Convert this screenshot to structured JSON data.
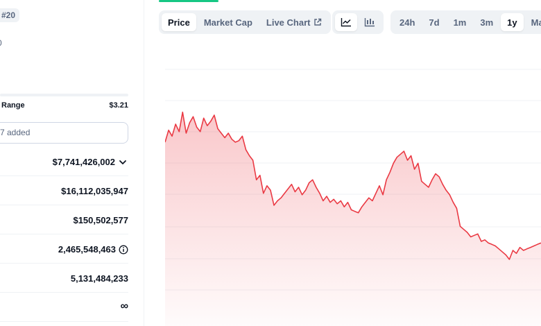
{
  "stats_panel": {
    "rank_badge": "#20",
    "small_fragment": "0",
    "range_label": "Range",
    "range_high": "$3.21",
    "watchlist_text": "7 added",
    "rows": [
      {
        "value": "$7,741,426,002",
        "suffix_icon": "chevron-down-icon"
      },
      {
        "value": "$16,112,035,947"
      },
      {
        "value": "$150,502,577"
      },
      {
        "value": "2,465,548,463",
        "suffix_icon": "info-icon"
      },
      {
        "value": "5,131,484,233"
      },
      {
        "value": "∞"
      }
    ]
  },
  "toolbar": {
    "view_tabs": [
      {
        "label": "Price",
        "active": true
      },
      {
        "label": "Market Cap",
        "active": false
      },
      {
        "label": "Live Chart",
        "active": false,
        "icon": "external-link-icon"
      }
    ],
    "chart_type_icons": [
      "line-chart-icon",
      "candlestick-chart-icon"
    ],
    "time_ranges": [
      {
        "label": "24h",
        "active": false
      },
      {
        "label": "7d",
        "active": false
      },
      {
        "label": "1m",
        "active": false
      },
      {
        "label": "3m",
        "active": false
      },
      {
        "label": "1y",
        "active": true
      },
      {
        "label": "Max",
        "active": false
      }
    ]
  },
  "colors": {
    "line": "#ea3943",
    "fill": "#ea3943",
    "grid": "#eff2f5",
    "active_underline": "#16c784"
  },
  "chart_data": {
    "type": "area",
    "title": "",
    "xlabel": "",
    "ylabel": "",
    "grid": true,
    "ylim": [
      0,
      100
    ],
    "series": [
      {
        "values": [
          70,
          78,
          74,
          82,
          77,
          90,
          76,
          83,
          87,
          80,
          77,
          86,
          81,
          84,
          88,
          79,
          76,
          73,
          76,
          72,
          70,
          71,
          74,
          65,
          61,
          58,
          45,
          48,
          36,
          41,
          38,
          28,
          31,
          33,
          36,
          39,
          42,
          37,
          40,
          35,
          38,
          43,
          45,
          40,
          36,
          31,
          34,
          30,
          32,
          29,
          31,
          27,
          30,
          25,
          24,
          23,
          27,
          30,
          33,
          31,
          36,
          41,
          35,
          45,
          50,
          56,
          60,
          62,
          64,
          58,
          61,
          52,
          56,
          44,
          42,
          40,
          45,
          49,
          47,
          42,
          38,
          35,
          30,
          26,
          14,
          12,
          10,
          7,
          8,
          9,
          4,
          5,
          3,
          2,
          1,
          -1,
          -3,
          -5,
          -8,
          -2,
          -4,
          0,
          -2,
          -1,
          0,
          1,
          2,
          3
        ]
      }
    ]
  }
}
